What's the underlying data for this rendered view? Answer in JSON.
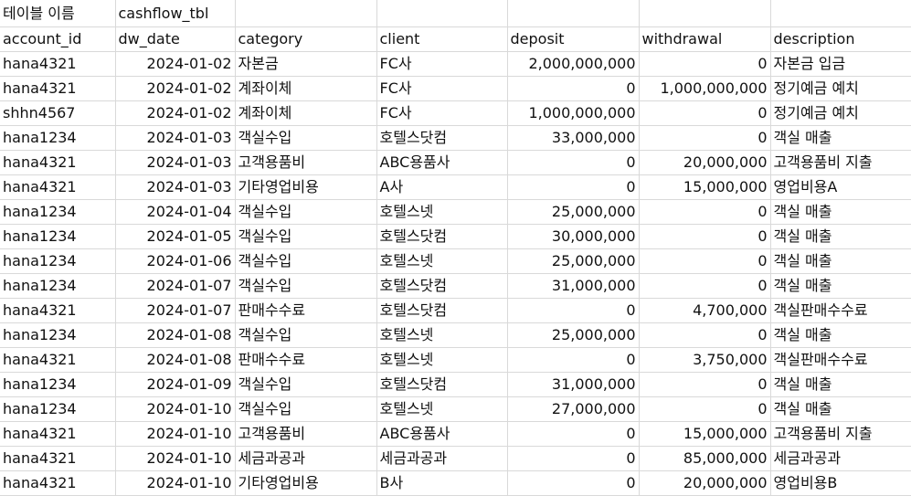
{
  "meta_row": {
    "label": "테이블 이름",
    "value": "cashflow_tbl"
  },
  "columns": [
    "account_id",
    "dw_date",
    "category",
    "client",
    "deposit",
    "withdrawal",
    "description"
  ],
  "rows": [
    [
      "hana4321",
      "2024-01-02",
      "자본금",
      "FC사",
      "2,000,000,000",
      "0",
      "자본금 입금"
    ],
    [
      "hana4321",
      "2024-01-02",
      "계좌이체",
      "FC사",
      "0",
      "1,000,000,000",
      "정기예금 예치"
    ],
    [
      "shhn4567",
      "2024-01-02",
      "계좌이체",
      "FC사",
      "1,000,000,000",
      "0",
      "정기예금 예치"
    ],
    [
      "hana1234",
      "2024-01-03",
      "객실수입",
      "호텔스닷컴",
      "33,000,000",
      "0",
      "객실 매출"
    ],
    [
      "hana4321",
      "2024-01-03",
      "고객용품비",
      "ABC용품사",
      "0",
      "20,000,000",
      "고객용품비 지출"
    ],
    [
      "hana4321",
      "2024-01-03",
      "기타영업비용",
      "A사",
      "0",
      "15,000,000",
      "영업비용A"
    ],
    [
      "hana1234",
      "2024-01-04",
      "객실수입",
      "호텔스넷",
      "25,000,000",
      "0",
      "객실 매출"
    ],
    [
      "hana1234",
      "2024-01-05",
      "객실수입",
      "호텔스닷컴",
      "30,000,000",
      "0",
      "객실 매출"
    ],
    [
      "hana1234",
      "2024-01-06",
      "객실수입",
      "호텔스넷",
      "25,000,000",
      "0",
      "객실 매출"
    ],
    [
      "hana1234",
      "2024-01-07",
      "객실수입",
      "호텔스닷컴",
      "31,000,000",
      "0",
      "객실 매출"
    ],
    [
      "hana4321",
      "2024-01-07",
      "판매수수료",
      "호텔스닷컴",
      "0",
      "4,700,000",
      "객실판매수수료"
    ],
    [
      "hana1234",
      "2024-01-08",
      "객실수입",
      "호텔스넷",
      "25,000,000",
      "0",
      "객실 매출"
    ],
    [
      "hana4321",
      "2024-01-08",
      "판매수수료",
      "호텔스넷",
      "0",
      "3,750,000",
      "객실판매수수료"
    ],
    [
      "hana1234",
      "2024-01-09",
      "객실수입",
      "호텔스닷컴",
      "31,000,000",
      "0",
      "객실 매출"
    ],
    [
      "hana1234",
      "2024-01-10",
      "객실수입",
      "호텔스넷",
      "27,000,000",
      "0",
      "객실 매출"
    ],
    [
      "hana4321",
      "2024-01-10",
      "고객용품비",
      "ABC용품사",
      "0",
      "15,000,000",
      "고객용품비 지출"
    ],
    [
      "hana4321",
      "2024-01-10",
      "세금과공과",
      "세금과공과",
      "0",
      "85,000,000",
      "세금과공과"
    ],
    [
      "hana4321",
      "2024-01-10",
      "기타영업비용",
      "B사",
      "0",
      "20,000,000",
      "영업비용B"
    ]
  ]
}
